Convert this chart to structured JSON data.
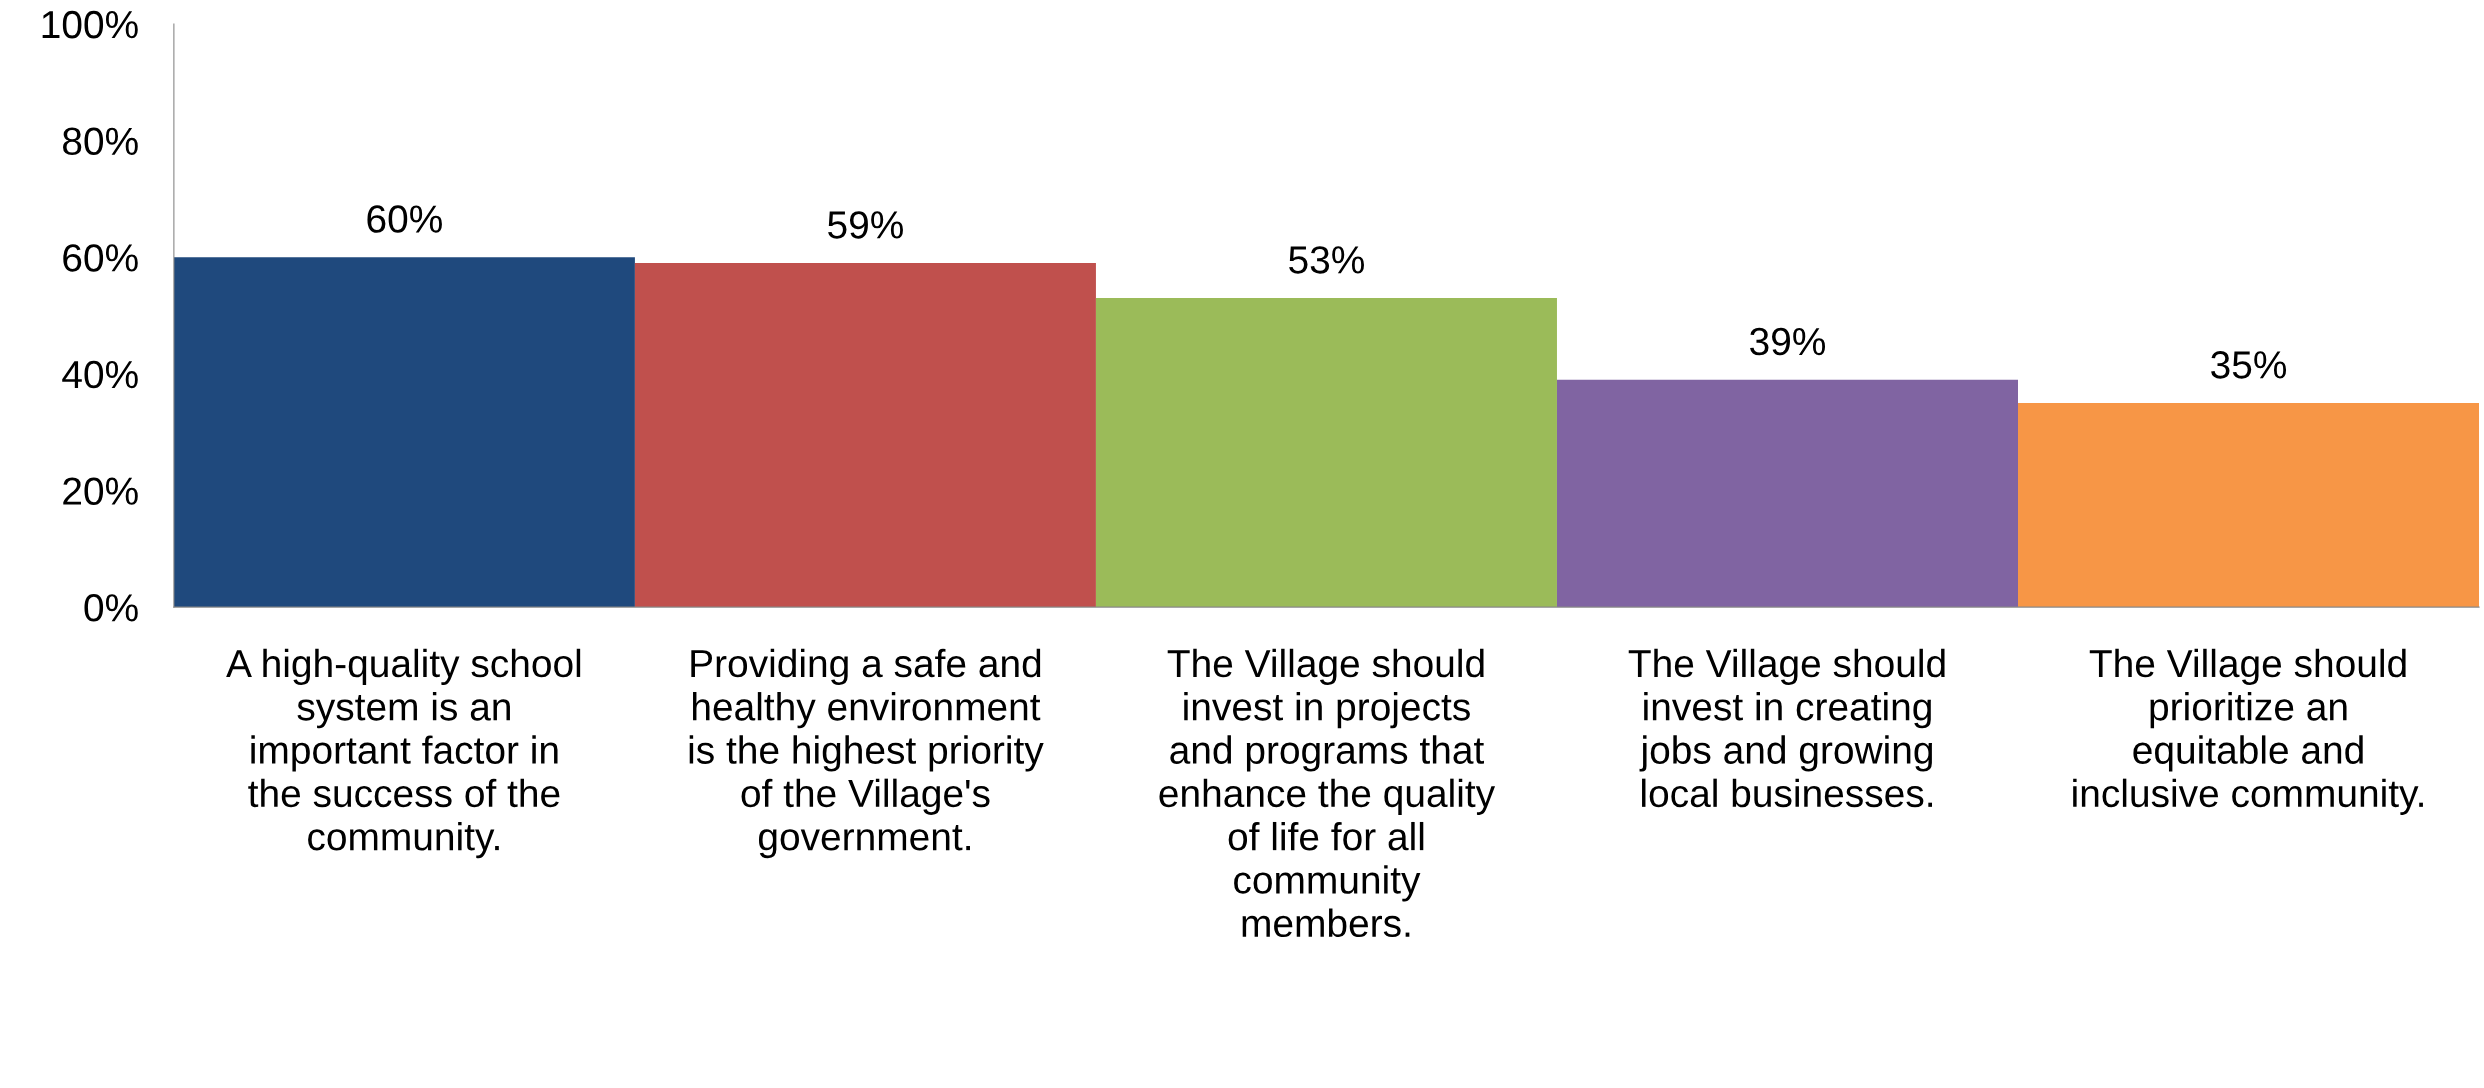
{
  "chart_data": {
    "type": "bar",
    "categories": [
      "A high-quality school\nsystem is an\nimportant factor in\nthe success of the\ncommunity.",
      "Providing a safe and\nhealthy environment\nis the highest priority\nof the Village's\ngovernment.",
      "The Village should\ninvest in projects\nand programs that\nenhance the quality\nof life for all\ncommunity\nmembers.",
      "The Village should\ninvest in creating\njobs and growing\nlocal businesses.",
      "The Village should\nprioritize an\nequitable and\ninclusive community."
    ],
    "values": [
      60,
      59,
      53,
      39,
      35
    ],
    "colors": [
      "#1f497d",
      "#c0504d",
      "#9bbb59",
      "#8064a2",
      "#f79646"
    ],
    "value_labels": [
      "60%",
      "59%",
      "53%",
      "39%",
      "35%"
    ],
    "ylim": [
      0,
      100
    ],
    "yticks": [
      {
        "value": 0,
        "label": "0%"
      },
      {
        "value": 20,
        "label": "20%"
      },
      {
        "value": 40,
        "label": "40%"
      },
      {
        "value": 60,
        "label": "60%"
      },
      {
        "value": 80,
        "label": "80%"
      },
      {
        "value": 100,
        "label": "100%"
      }
    ],
    "grid": false,
    "legend": false
  }
}
